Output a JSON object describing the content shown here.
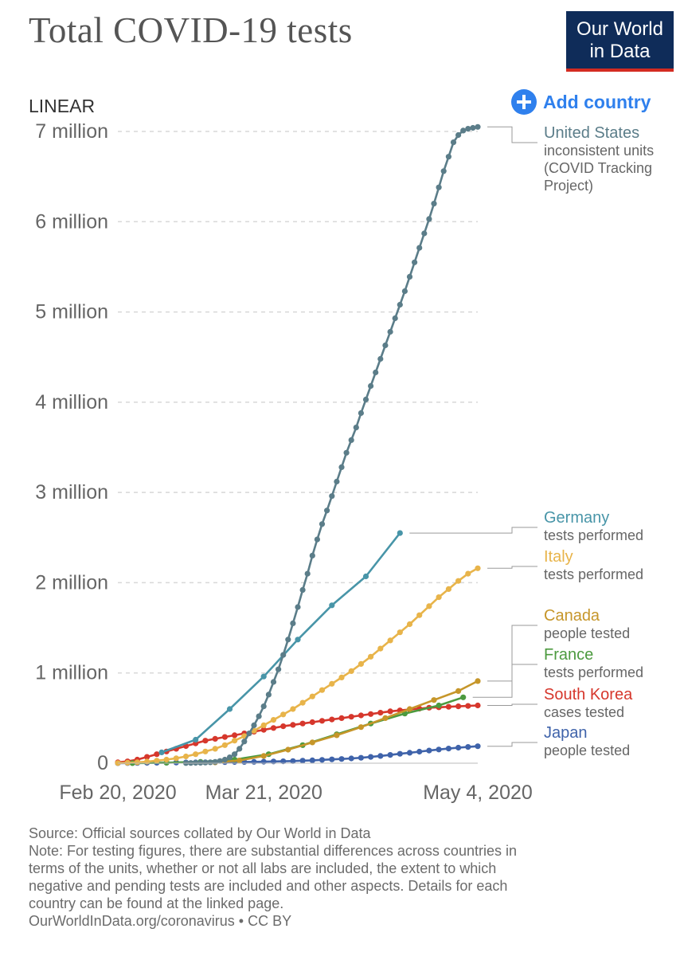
{
  "header": {
    "title": "Total COVID-19 tests",
    "logo_line1": "Our World",
    "logo_line2": "in Data",
    "scale_label": "LINEAR",
    "add_country_label": "Add country"
  },
  "chart_data": {
    "type": "line",
    "title": "Total COVID-19 tests",
    "xlabel": "",
    "ylabel": "",
    "x_unit": "days since Feb 20, 2020",
    "xlim": [
      0,
      74
    ],
    "ylim": [
      0,
      7000000
    ],
    "grid": true,
    "y_ticks": [
      {
        "value": 0,
        "label": "0"
      },
      {
        "value": 1000000,
        "label": "1 million"
      },
      {
        "value": 2000000,
        "label": "2 million"
      },
      {
        "value": 3000000,
        "label": "3 million"
      },
      {
        "value": 4000000,
        "label": "4 million"
      },
      {
        "value": 5000000,
        "label": "5 million"
      },
      {
        "value": 6000000,
        "label": "6 million"
      },
      {
        "value": 7000000,
        "label": "7 million"
      }
    ],
    "x_ticks": [
      {
        "value": 0,
        "label": "Feb 20, 2020"
      },
      {
        "value": 30,
        "label": "Mar 21, 2020"
      },
      {
        "value": 74,
        "label": "May 4, 2020"
      }
    ],
    "series": [
      {
        "name": "United States",
        "sublabel": "inconsistent units (COVID Tracking Project)",
        "sublabel_lines": [
          "inconsistent units",
          "(COVID Tracking",
          "Project)"
        ],
        "color": "#5b7d89",
        "step": 1,
        "x": [
          14,
          15,
          16,
          17,
          18,
          19,
          20,
          21,
          22,
          23,
          24,
          25,
          26,
          27,
          28,
          29,
          30,
          31,
          32,
          33,
          34,
          35,
          36,
          37,
          38,
          39,
          40,
          41,
          42,
          43,
          44,
          45,
          46,
          47,
          48,
          49,
          50,
          51,
          52,
          53,
          54,
          55,
          56,
          57,
          58,
          59,
          60,
          61,
          62,
          63,
          64,
          65,
          66,
          67,
          68,
          69,
          70,
          71,
          72,
          73,
          74
        ],
        "y": [
          2000,
          3000,
          4000,
          5000,
          7000,
          10000,
          15000,
          25000,
          40000,
          65000,
          100000,
          160000,
          240000,
          330000,
          420000,
          520000,
          630000,
          760000,
          900000,
          1040000,
          1200000,
          1370000,
          1550000,
          1730000,
          1920000,
          2100000,
          2300000,
          2480000,
          2650000,
          2800000,
          2960000,
          3120000,
          3280000,
          3440000,
          3580000,
          3720000,
          3880000,
          4030000,
          4180000,
          4330000,
          4480000,
          4630000,
          4780000,
          4930000,
          5080000,
          5230000,
          5390000,
          5550000,
          5710000,
          5870000,
          6030000,
          6200000,
          6380000,
          6560000,
          6720000,
          6880000,
          6960000,
          7010000,
          7030000,
          7040000,
          7050000
        ]
      },
      {
        "name": "Germany",
        "sublabel": "tests performed",
        "sublabel_lines": [
          "tests performed"
        ],
        "color": "#4895a8",
        "step": 1,
        "x": [
          9,
          16,
          23,
          30,
          37,
          44,
          51,
          58
        ],
        "y": [
          120000,
          260000,
          600000,
          960000,
          1370000,
          1750000,
          2070000,
          2550000
        ]
      },
      {
        "name": "Italy",
        "sublabel": "tests performed",
        "sublabel_lines": [
          "tests performed"
        ],
        "color": "#e8b44a",
        "step": 1,
        "x": [
          0,
          2,
          4,
          6,
          8,
          10,
          12,
          14,
          16,
          18,
          20,
          22,
          24,
          26,
          28,
          30,
          32,
          34,
          36,
          38,
          40,
          42,
          44,
          46,
          48,
          50,
          52,
          54,
          56,
          58,
          60,
          62,
          64,
          66,
          68,
          70,
          72,
          74
        ],
        "y": [
          2000,
          5000,
          10000,
          18000,
          28000,
          40000,
          55000,
          75000,
          100000,
          130000,
          160000,
          200000,
          250000,
          300000,
          360000,
          420000,
          480000,
          540000,
          600000,
          670000,
          740000,
          810000,
          880000,
          950000,
          1020000,
          1100000,
          1180000,
          1270000,
          1360000,
          1450000,
          1540000,
          1640000,
          1740000,
          1840000,
          1930000,
          2020000,
          2100000,
          2160000
        ]
      },
      {
        "name": "Canada",
        "sublabel": "people tested",
        "sublabel_lines": [
          "people tested"
        ],
        "color": "#c6962a",
        "step": 1,
        "x": [
          20,
          25,
          30,
          35,
          40,
          45,
          50,
          55,
          60,
          65,
          70,
          74
        ],
        "y": [
          10000,
          30000,
          80000,
          150000,
          230000,
          310000,
          400000,
          500000,
          600000,
          700000,
          800000,
          910000
        ]
      },
      {
        "name": "France",
        "sublabel": "tests performed",
        "sublabel_lines": [
          "tests performed"
        ],
        "color": "#4c9a3f",
        "step": 1,
        "x": [
          3,
          10,
          17,
          24,
          31,
          38,
          45,
          52,
          59,
          66,
          71
        ],
        "y": [
          1000,
          5000,
          15000,
          40000,
          100000,
          200000,
          320000,
          440000,
          550000,
          640000,
          730000
        ]
      },
      {
        "name": "South Korea",
        "sublabel": "cases tested",
        "sublabel_lines": [
          "cases tested"
        ],
        "color": "#d6372c",
        "step": 1,
        "x": [
          0,
          2,
          4,
          6,
          8,
          10,
          12,
          14,
          16,
          18,
          20,
          22,
          24,
          26,
          28,
          30,
          32,
          34,
          36,
          38,
          40,
          42,
          44,
          46,
          48,
          50,
          52,
          54,
          56,
          58,
          60,
          62,
          64,
          66,
          68,
          70,
          72,
          74
        ],
        "y": [
          10000,
          20000,
          40000,
          70000,
          100000,
          130000,
          160000,
          190000,
          220000,
          250000,
          270000,
          290000,
          310000,
          330000,
          350000,
          370000,
          390000,
          410000,
          425000,
          440000,
          455000,
          470000,
          485000,
          500000,
          515000,
          530000,
          545000,
          560000,
          575000,
          585000,
          595000,
          605000,
          615000,
          620000,
          625000,
          630000,
          635000,
          640000
        ]
      },
      {
        "name": "Japan",
        "sublabel": "people tested",
        "sublabel_lines": [
          "people tested"
        ],
        "color": "#3f63aa",
        "step": 1,
        "x": [
          0,
          2,
          4,
          6,
          8,
          10,
          12,
          14,
          16,
          18,
          20,
          22,
          24,
          26,
          28,
          30,
          32,
          34,
          36,
          38,
          40,
          42,
          44,
          46,
          48,
          50,
          52,
          54,
          56,
          58,
          60,
          62,
          64,
          66,
          68,
          70,
          72,
          74
        ],
        "y": [
          1000,
          2000,
          3000,
          4000,
          5000,
          6000,
          7000,
          8000,
          9000,
          10000,
          11000,
          12000,
          13000,
          14000,
          15000,
          17000,
          19000,
          21000,
          24000,
          28000,
          32000,
          37000,
          42000,
          47000,
          53000,
          60000,
          70000,
          80000,
          92000,
          104000,
          116000,
          128000,
          140000,
          152000,
          162000,
          172000,
          180000,
          188000
        ]
      }
    ]
  },
  "footer": {
    "source": "Source: Official sources collated by Our World in Data",
    "note_lines": [
      "Note: For testing figures, there are substantial differences across countries in",
      "terms of the units, whether or not all labs are included, the extent to which",
      "negative and pending tests are included and other aspects. Details for each",
      "country can be found at the linked page."
    ],
    "url_license": "OurWorldInData.org/coronavirus • CC BY"
  }
}
